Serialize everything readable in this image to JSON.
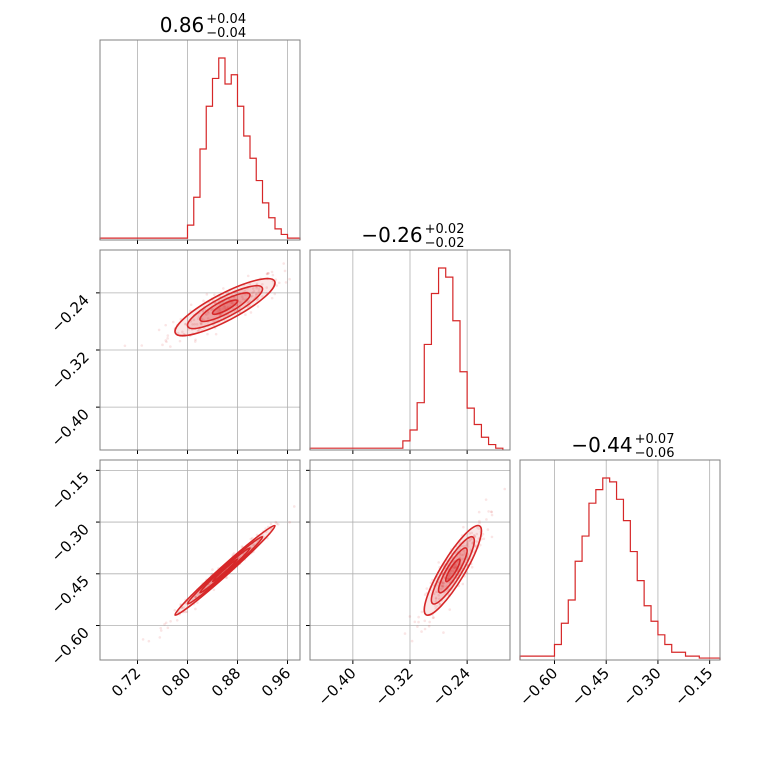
{
  "chart_data": {
    "type": "corner",
    "color": "#d62728",
    "grid": true,
    "parameters": [
      {
        "title_value": "0.86",
        "title_plus": "+0.04",
        "title_minus": "−0.04",
        "range": [
          0.66,
          0.98
        ],
        "ticks": [
          0.72,
          0.8,
          0.88,
          0.96
        ],
        "tick_labels": [
          "0.72",
          "0.80",
          "0.88",
          "0.96"
        ],
        "median": 0.86,
        "sigma": 0.04
      },
      {
        "title_value": "−0.26",
        "title_plus": "+0.02",
        "title_minus": "−0.02",
        "range": [
          -0.46,
          -0.18
        ],
        "ticks": [
          -0.4,
          -0.32,
          -0.24
        ],
        "tick_labels": [
          "−0.40",
          "−0.32",
          "−0.24"
        ],
        "median": -0.26,
        "sigma": 0.02
      },
      {
        "title_value": "−0.44",
        "title_plus": "+0.07",
        "title_minus": "−0.06",
        "range": [
          -0.7,
          -0.12
        ],
        "ticks": [
          -0.6,
          -0.45,
          -0.3,
          -0.15
        ],
        "tick_labels": [
          "−0.60",
          "−0.45",
          "−0.30",
          "−0.15"
        ],
        "median": -0.44,
        "sigma": 0.065
      }
    ],
    "histograms": [
      {
        "param": 0,
        "bin_edges": [
          0.66,
          0.8,
          0.81,
          0.82,
          0.83,
          0.84,
          0.85,
          0.86,
          0.87,
          0.88,
          0.89,
          0.9,
          0.91,
          0.92,
          0.93,
          0.94,
          0.95,
          0.96,
          0.98
        ],
        "counts": [
          1,
          8,
          23,
          49,
          72,
          87,
          98,
          84,
          89,
          72,
          56,
          44,
          32,
          20,
          12,
          6,
          3,
          1
        ]
      },
      {
        "param": 1,
        "bin_edges": [
          -0.46,
          -0.33,
          -0.32,
          -0.31,
          -0.3,
          -0.29,
          -0.28,
          -0.27,
          -0.26,
          -0.25,
          -0.24,
          -0.23,
          -0.22,
          -0.21,
          -0.2,
          -0.19
        ],
        "counts": [
          1,
          5,
          11,
          26,
          58,
          86,
          100,
          95,
          71,
          43,
          23,
          14,
          7,
          3,
          1
        ]
      },
      {
        "param": 2,
        "bin_edges": [
          -0.7,
          -0.6,
          -0.58,
          -0.56,
          -0.54,
          -0.52,
          -0.5,
          -0.48,
          -0.46,
          -0.44,
          -0.42,
          -0.4,
          -0.38,
          -0.36,
          -0.34,
          -0.32,
          -0.3,
          -0.28,
          -0.26,
          -0.22,
          -0.18,
          -0.12
        ],
        "counts": [
          2,
          8,
          19,
          31,
          51,
          64,
          81,
          88,
          94,
          92,
          83,
          72,
          56,
          41,
          28,
          20,
          13,
          8,
          4,
          2,
          1
        ]
      }
    ],
    "pairs": [
      {
        "x_param": 0,
        "y_param": 1,
        "correlation": 0.85
      },
      {
        "x_param": 0,
        "y_param": 2,
        "correlation": 0.99
      },
      {
        "x_param": 1,
        "y_param": 2,
        "correlation": 0.88
      }
    ]
  }
}
